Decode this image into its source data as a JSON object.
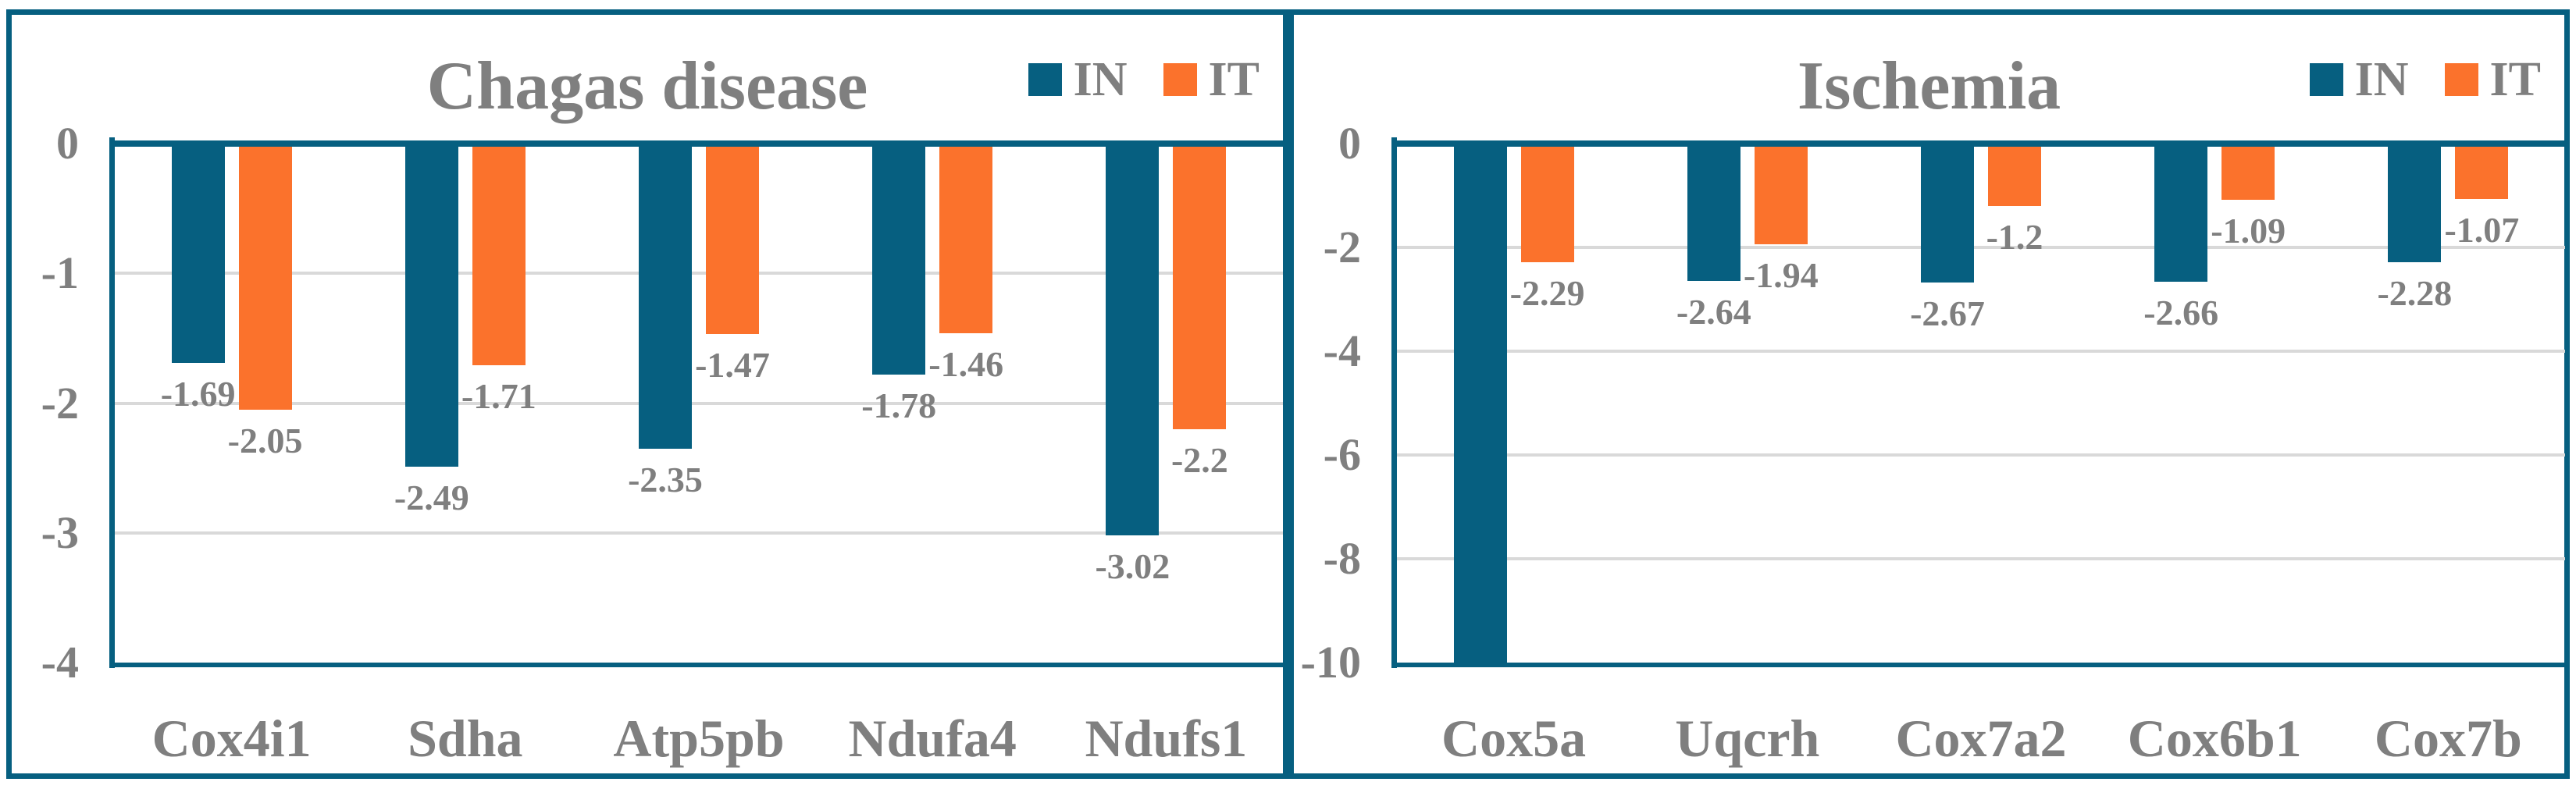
{
  "figure": {
    "background": "#ffffff",
    "panel_border_color": "#065f80",
    "text_color": "#7f7f7f",
    "gridline_color": "#d9d9d9"
  },
  "legend": {
    "in_label": "IN",
    "it_label": "IT",
    "in_color": "#065f80",
    "it_color": "#fb722c"
  },
  "chart_data": [
    {
      "type": "bar",
      "title": "Chagas disease",
      "categories": [
        "Cox4i1",
        "Sdha",
        "Atp5pb",
        "Ndufa4",
        "Ndufs1"
      ],
      "series": [
        {
          "name": "IN",
          "color": "#065f80",
          "values": [
            -1.69,
            -2.49,
            -2.35,
            -1.78,
            -3.02
          ],
          "labels": [
            "-1.69",
            "-2.49",
            "-2.35",
            "-1.78",
            "-3.02"
          ]
        },
        {
          "name": "IT",
          "color": "#fb722c",
          "values": [
            -2.05,
            -1.71,
            -1.47,
            -1.46,
            -2.2
          ],
          "labels": [
            "-2.05",
            "-1.71",
            "-1.47",
            "-1.46",
            "-2.2"
          ]
        }
      ],
      "xlabel": "",
      "ylabel": "",
      "ylim": [
        -4,
        0
      ],
      "yticks": [
        0,
        -1,
        -2,
        -3,
        -4
      ],
      "grid": true,
      "legend_position": "top-right"
    },
    {
      "type": "bar",
      "title": "Ischemia",
      "categories": [
        "Cox5a",
        "Uqcrh",
        "Cox7a2",
        "Cox6b1",
        "Cox7b"
      ],
      "series": [
        {
          "name": "IN",
          "color": "#065f80",
          "values": [
            -10,
            -2.64,
            -2.67,
            -2.66,
            -2.28
          ],
          "labels": [
            "",
            "-2.64",
            "-2.67",
            "-2.66",
            "-2.28"
          ]
        },
        {
          "name": "IT",
          "color": "#fb722c",
          "values": [
            -2.29,
            -1.94,
            -1.2,
            -1.09,
            -1.07
          ],
          "labels": [
            "-2.29",
            "-1.94",
            "-1.2",
            "-1.09",
            "-1.07"
          ]
        }
      ],
      "xlabel": "",
      "ylabel": "",
      "ylim": [
        -10,
        0
      ],
      "yticks": [
        0,
        -2,
        -4,
        -6,
        -8,
        -10
      ],
      "grid": true,
      "legend_position": "top-right",
      "notes": "Cox5a IN bar extends to the axis minimum (-10); no data label shown for it."
    }
  ]
}
